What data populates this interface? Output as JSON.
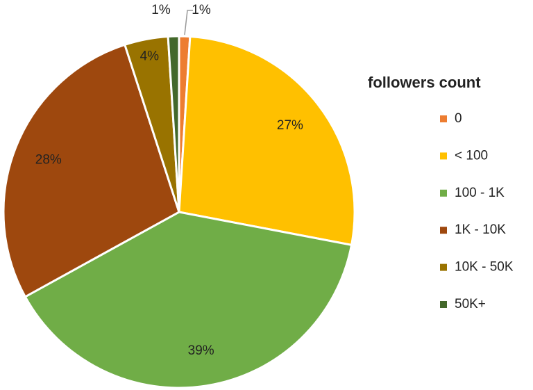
{
  "chart_data": {
    "type": "pie",
    "legend_title": "followers count",
    "categories": [
      "0",
      "< 100",
      "100 - 1K",
      "1K - 10K",
      "10K - 50K",
      "50K+"
    ],
    "values": [
      1,
      27,
      39,
      28,
      4,
      1
    ],
    "value_labels": [
      "1%",
      "27%",
      "39%",
      "28%",
      "4%",
      "1%"
    ],
    "colors": [
      "#ED7D31",
      "#FFC000",
      "#70AD47",
      "#9E480E",
      "#997300",
      "#43682B"
    ],
    "legend": "right"
  }
}
